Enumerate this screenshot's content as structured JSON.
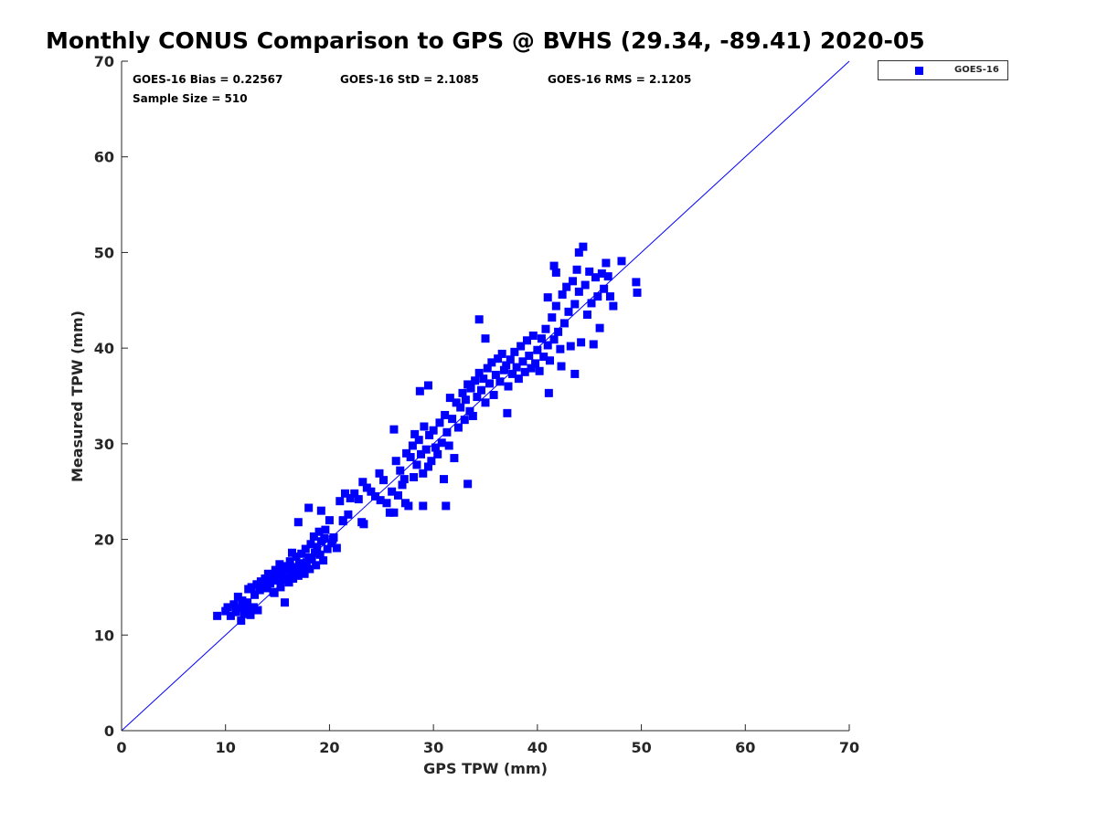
{
  "chart_data": {
    "type": "scatter",
    "title": "Monthly CONUS Comparison to GPS @ BVHS (29.34, -89.41) 2020-05",
    "xlabel": "GPS TPW (mm)",
    "ylabel": "Measured TPW (mm)",
    "xlim": [
      0,
      70
    ],
    "ylim": [
      0,
      70
    ],
    "xticks": [
      "0",
      "10",
      "20",
      "30",
      "40",
      "50",
      "60",
      "70"
    ],
    "yticks": [
      "0",
      "10",
      "20",
      "30",
      "40",
      "50",
      "60",
      "70"
    ],
    "grid": false,
    "legend_position": "top-right outside",
    "reference_line": {
      "from": [
        0,
        0
      ],
      "to": [
        70,
        70
      ],
      "color": "#0000ff"
    },
    "annotations": {
      "bias": "GOES-16 Bias = 0.22567",
      "std": "GOES-16 StD = 2.1085",
      "rms": "GOES-16 RMS = 2.1205",
      "sample": "Sample Size = 510"
    },
    "series": [
      {
        "name": "GOES-16",
        "color": "#0000ff",
        "marker": "square",
        "points": [
          [
            9.2,
            12.0
          ],
          [
            10.0,
            12.5
          ],
          [
            10.2,
            12.9
          ],
          [
            10.5,
            12.0
          ],
          [
            10.8,
            13.2
          ],
          [
            11.0,
            12.4
          ],
          [
            11.2,
            14.0
          ],
          [
            11.3,
            12.8
          ],
          [
            11.5,
            11.5
          ],
          [
            11.6,
            13.6
          ],
          [
            11.8,
            12.2
          ],
          [
            12.0,
            12.7
          ],
          [
            12.1,
            13.4
          ],
          [
            12.2,
            14.8
          ],
          [
            12.4,
            12.1
          ],
          [
            12.5,
            15.0
          ],
          [
            12.7,
            12.9
          ],
          [
            12.8,
            14.2
          ],
          [
            13.0,
            15.3
          ],
          [
            13.1,
            12.6
          ],
          [
            13.3,
            14.7
          ],
          [
            13.4,
            15.6
          ],
          [
            13.6,
            15.1
          ],
          [
            13.8,
            15.9
          ],
          [
            14.0,
            14.9
          ],
          [
            14.1,
            16.4
          ],
          [
            14.3,
            15.4
          ],
          [
            14.5,
            16.1
          ],
          [
            14.6,
            14.5
          ],
          [
            14.8,
            16.8
          ],
          [
            15.0,
            15.7
          ],
          [
            15.1,
            16.3
          ],
          [
            15.2,
            17.4
          ],
          [
            15.3,
            15.0
          ],
          [
            15.5,
            16.6
          ],
          [
            15.6,
            15.8
          ],
          [
            15.7,
            17.2
          ],
          [
            15.9,
            16.0
          ],
          [
            16.0,
            16.9
          ],
          [
            16.1,
            15.5
          ],
          [
            16.2,
            17.7
          ],
          [
            16.3,
            16.4
          ],
          [
            16.5,
            15.9
          ],
          [
            16.6,
            17.1
          ],
          [
            16.7,
            16.6
          ],
          [
            16.8,
            18.2
          ],
          [
            17.0,
            16.2
          ],
          [
            17.1,
            17.5
          ],
          [
            17.2,
            16.8
          ],
          [
            17.3,
            18.5
          ],
          [
            17.5,
            17.0
          ],
          [
            17.6,
            16.4
          ],
          [
            17.7,
            19.0
          ],
          [
            17.8,
            17.6
          ],
          [
            18.0,
            18.1
          ],
          [
            18.1,
            16.9
          ],
          [
            18.2,
            19.5
          ],
          [
            18.3,
            17.9
          ],
          [
            18.5,
            20.3
          ],
          [
            18.6,
            18.6
          ],
          [
            18.7,
            17.3
          ],
          [
            18.8,
            19.2
          ],
          [
            19.0,
            20.8
          ],
          [
            19.1,
            18.4
          ],
          [
            19.2,
            19.8
          ],
          [
            19.4,
            17.8
          ],
          [
            19.5,
            20.1
          ],
          [
            19.6,
            21.0
          ],
          [
            19.8,
            19.0
          ],
          [
            17.0,
            21.8
          ],
          [
            18.0,
            23.3
          ],
          [
            19.2,
            23.0
          ],
          [
            15.7,
            13.4
          ],
          [
            14.7,
            14.4
          ],
          [
            16.4,
            18.6
          ],
          [
            20.0,
            22.0
          ],
          [
            20.2,
            19.6
          ],
          [
            20.4,
            20.2
          ],
          [
            21.0,
            24.0
          ],
          [
            21.3,
            22.0
          ],
          [
            21.5,
            24.8
          ],
          [
            21.8,
            22.6
          ],
          [
            22.0,
            24.3
          ],
          [
            22.4,
            24.8
          ],
          [
            22.8,
            24.2
          ],
          [
            23.2,
            26.0
          ],
          [
            23.3,
            21.6
          ],
          [
            23.6,
            25.4
          ],
          [
            24.0,
            25.0
          ],
          [
            24.4,
            24.5
          ],
          [
            24.8,
            26.9
          ],
          [
            25.2,
            26.2
          ],
          [
            25.5,
            23.8
          ],
          [
            25.8,
            22.8
          ],
          [
            26.0,
            25.0
          ],
          [
            26.2,
            31.5
          ],
          [
            26.4,
            28.2
          ],
          [
            26.6,
            24.6
          ],
          [
            26.8,
            27.2
          ],
          [
            27.0,
            25.7
          ],
          [
            27.2,
            26.3
          ],
          [
            27.4,
            29.0
          ],
          [
            27.6,
            23.5
          ],
          [
            27.8,
            28.6
          ],
          [
            28.0,
            29.8
          ],
          [
            28.1,
            26.5
          ],
          [
            28.2,
            31.0
          ],
          [
            28.4,
            27.8
          ],
          [
            28.6,
            30.4
          ],
          [
            28.8,
            28.9
          ],
          [
            29.0,
            26.9
          ],
          [
            29.1,
            31.8
          ],
          [
            29.3,
            29.4
          ],
          [
            29.5,
            27.6
          ],
          [
            29.6,
            30.9
          ],
          [
            29.8,
            28.2
          ],
          [
            30.0,
            31.4
          ],
          [
            30.2,
            29.6
          ],
          [
            30.4,
            28.9
          ],
          [
            30.6,
            32.2
          ],
          [
            30.8,
            30.1
          ],
          [
            31.0,
            26.3
          ],
          [
            31.1,
            33.0
          ],
          [
            31.3,
            31.2
          ],
          [
            31.5,
            29.8
          ],
          [
            31.6,
            34.8
          ],
          [
            31.8,
            32.6
          ],
          [
            32.0,
            28.5
          ],
          [
            32.2,
            34.3
          ],
          [
            32.4,
            31.7
          ],
          [
            32.6,
            33.8
          ],
          [
            32.8,
            35.3
          ],
          [
            33.0,
            32.5
          ],
          [
            33.1,
            34.6
          ],
          [
            33.3,
            36.2
          ],
          [
            33.5,
            33.4
          ],
          [
            33.6,
            35.8
          ],
          [
            33.8,
            32.9
          ],
          [
            34.0,
            36.6
          ],
          [
            34.2,
            34.9
          ],
          [
            34.4,
            37.4
          ],
          [
            34.6,
            35.6
          ],
          [
            34.8,
            36.8
          ],
          [
            35.0,
            34.3
          ],
          [
            35.2,
            37.9
          ],
          [
            35.4,
            36.3
          ],
          [
            35.6,
            38.5
          ],
          [
            35.8,
            35.1
          ],
          [
            36.0,
            37.2
          ],
          [
            36.2,
            38.9
          ],
          [
            36.4,
            36.5
          ],
          [
            36.6,
            39.4
          ],
          [
            36.8,
            37.7
          ],
          [
            37.0,
            38.2
          ],
          [
            37.2,
            36.0
          ],
          [
            37.4,
            38.8
          ],
          [
            37.6,
            37.3
          ],
          [
            37.8,
            39.6
          ],
          [
            38.0,
            38.0
          ],
          [
            38.2,
            36.8
          ],
          [
            38.4,
            40.2
          ],
          [
            38.6,
            38.6
          ],
          [
            38.8,
            37.5
          ],
          [
            39.0,
            40.8
          ],
          [
            39.2,
            39.2
          ],
          [
            39.4,
            37.9
          ],
          [
            39.6,
            41.3
          ],
          [
            39.8,
            38.4
          ],
          [
            40.0,
            39.8
          ],
          [
            40.2,
            37.6
          ],
          [
            40.4,
            41.0
          ],
          [
            40.6,
            39.1
          ],
          [
            40.8,
            42.0
          ],
          [
            41.0,
            40.3
          ],
          [
            41.2,
            38.7
          ],
          [
            41.4,
            43.2
          ],
          [
            41.6,
            40.9
          ],
          [
            41.8,
            44.4
          ],
          [
            42.0,
            41.7
          ],
          [
            42.2,
            39.9
          ],
          [
            42.4,
            45.6
          ],
          [
            42.6,
            42.6
          ],
          [
            42.8,
            46.4
          ],
          [
            43.0,
            43.8
          ],
          [
            43.2,
            40.2
          ],
          [
            43.4,
            47.0
          ],
          [
            43.6,
            44.6
          ],
          [
            43.8,
            48.2
          ],
          [
            44.0,
            45.9
          ],
          [
            44.2,
            40.6
          ],
          [
            44.4,
            50.6
          ],
          [
            44.6,
            46.6
          ],
          [
            44.8,
            43.5
          ],
          [
            45.0,
            48.0
          ],
          [
            45.2,
            44.7
          ],
          [
            45.4,
            40.4
          ],
          [
            45.6,
            47.4
          ],
          [
            45.8,
            45.4
          ],
          [
            46.0,
            42.1
          ],
          [
            46.2,
            47.8
          ],
          [
            46.4,
            46.2
          ],
          [
            46.6,
            48.9
          ],
          [
            46.8,
            47.5
          ],
          [
            47.0,
            45.4
          ],
          [
            47.3,
            44.4
          ],
          [
            48.1,
            49.1
          ],
          [
            49.5,
            46.9
          ],
          [
            49.6,
            45.8
          ],
          [
            44.0,
            50.0
          ],
          [
            41.6,
            48.6
          ],
          [
            41.8,
            47.9
          ],
          [
            41.0,
            45.3
          ],
          [
            42.3,
            38.1
          ],
          [
            43.6,
            37.3
          ],
          [
            41.1,
            35.3
          ],
          [
            37.1,
            33.2
          ],
          [
            33.3,
            25.8
          ],
          [
            31.2,
            23.5
          ],
          [
            29.0,
            23.5
          ],
          [
            27.3,
            23.8
          ],
          [
            34.4,
            43.0
          ],
          [
            35.0,
            41.0
          ],
          [
            29.5,
            36.1
          ],
          [
            28.7,
            35.5
          ],
          [
            26.2,
            22.8
          ],
          [
            24.9,
            24.1
          ],
          [
            23.1,
            21.8
          ],
          [
            21.3,
            21.9
          ],
          [
            20.7,
            19.1
          ],
          [
            20.3,
            20.0
          ]
        ]
      }
    ]
  }
}
